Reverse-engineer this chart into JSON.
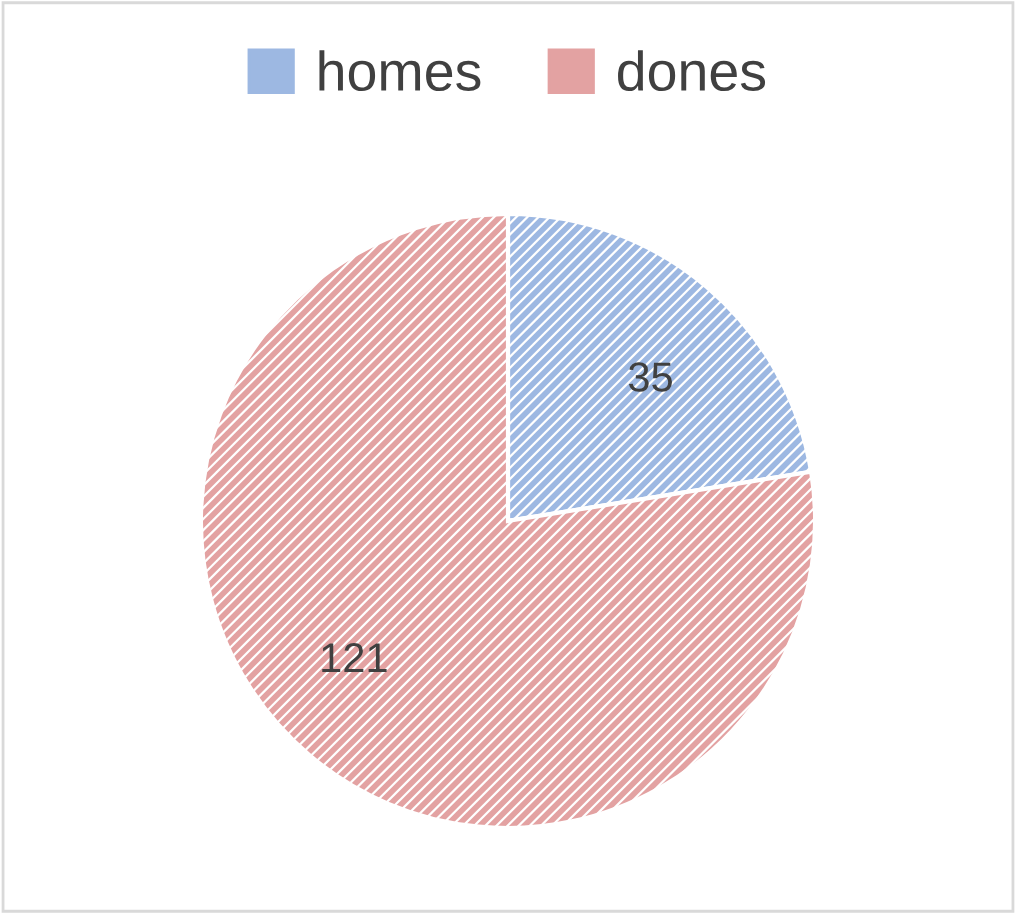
{
  "chart_data": {
    "type": "pie",
    "categories": [
      "homes",
      "dones"
    ],
    "values": [
      35,
      121
    ],
    "colors": [
      "#9db8e2",
      "#e3a2a2"
    ],
    "data_labels": true,
    "legend": "top"
  }
}
